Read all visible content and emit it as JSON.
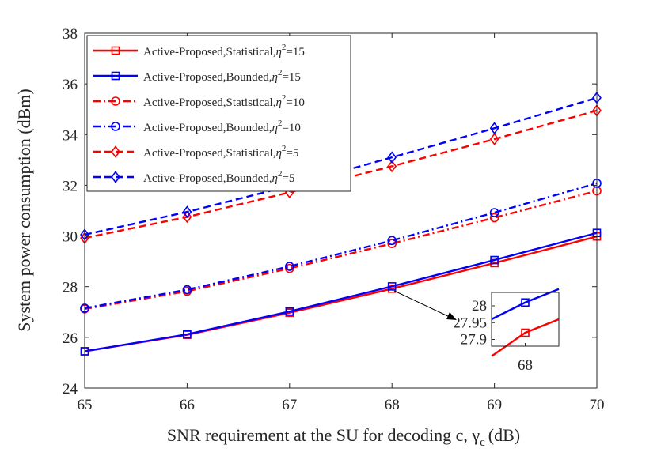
{
  "chart_data": {
    "type": "line",
    "xlabel": "SNR requirement at the SU for decoding c, γ",
    "xlabel_sub": "c",
    "xlabel_unit": "(dB)",
    "ylabel": "System power consumption (dBm)",
    "xlim": [
      65,
      70
    ],
    "ylim": [
      24,
      38
    ],
    "x": [
      65,
      66,
      67,
      68,
      69,
      70
    ],
    "xticks": [
      "65",
      "66",
      "67",
      "68",
      "69",
      "70"
    ],
    "yticks": [
      "24",
      "26",
      "28",
      "30",
      "32",
      "34",
      "36",
      "38"
    ],
    "legend_position": "top-left",
    "series": [
      {
        "name": "Active-Proposed,Statistical,η²=15",
        "label_main": "Active-Proposed,Statistical,",
        "eta": "η",
        "sup": "2",
        "tail": "=15",
        "color": "#ff0000",
        "dash": "solid",
        "marker": "square",
        "values": [
          25.45,
          26.1,
          26.97,
          27.92,
          28.93,
          29.98
        ]
      },
      {
        "name": "Active-Proposed,Bounded,η²=15",
        "label_main": "Active-Proposed,Bounded,",
        "eta": "η",
        "sup": "2",
        "tail": "=15",
        "color": "#0000ff",
        "dash": "solid",
        "marker": "square",
        "values": [
          25.45,
          26.12,
          27.02,
          28.01,
          29.05,
          30.12
        ]
      },
      {
        "name": "Active-Proposed,Statistical,η²=10",
        "label_main": "Active-Proposed,Statistical,",
        "eta": "η",
        "sup": "2",
        "tail": "=10",
        "color": "#ff0000",
        "dash": "dashdot",
        "marker": "circle",
        "values": [
          27.12,
          27.82,
          28.72,
          29.7,
          30.72,
          31.78
        ]
      },
      {
        "name": "Active-Proposed,Bounded,η²=10",
        "label_main": "Active-Proposed,Bounded,",
        "eta": "η",
        "sup": "2",
        "tail": "=10",
        "color": "#0000ff",
        "dash": "dashdot",
        "marker": "circle",
        "values": [
          27.15,
          27.88,
          28.8,
          29.82,
          30.92,
          32.08
        ]
      },
      {
        "name": "Active-Proposed,Statistical,η²=5",
        "label_main": "Active-Proposed,Statistical,",
        "eta": "η",
        "sup": "2",
        "tail": "=5",
        "color": "#ff0000",
        "dash": "dashed",
        "marker": "diamond",
        "values": [
          29.92,
          30.75,
          31.72,
          32.75,
          33.82,
          34.95
        ]
      },
      {
        "name": "Active-Proposed,Bounded,η²=5",
        "label_main": "Active-Proposed,Bounded,",
        "eta": "η",
        "sup": "2",
        "tail": "=5",
        "color": "#0000ff",
        "dash": "dashed",
        "marker": "diamond",
        "values": [
          30.05,
          30.95,
          31.97,
          33.1,
          34.25,
          35.45
        ]
      }
    ],
    "inset": {
      "xlim": [
        67.5,
        68.5
      ],
      "ylim": [
        27.88,
        28.04
      ],
      "xticks": [
        "68"
      ],
      "yticks": [
        "28",
        "27.95",
        "27.9"
      ],
      "ytick_values": [
        28,
        27.95,
        27.9
      ],
      "series_index": [
        0,
        1
      ],
      "local_values": [
        [
          27.85,
          27.92,
          27.96
        ],
        [
          27.96,
          28.01,
          28.05
        ]
      ],
      "local_x": [
        67.5,
        68,
        68.5
      ]
    }
  }
}
